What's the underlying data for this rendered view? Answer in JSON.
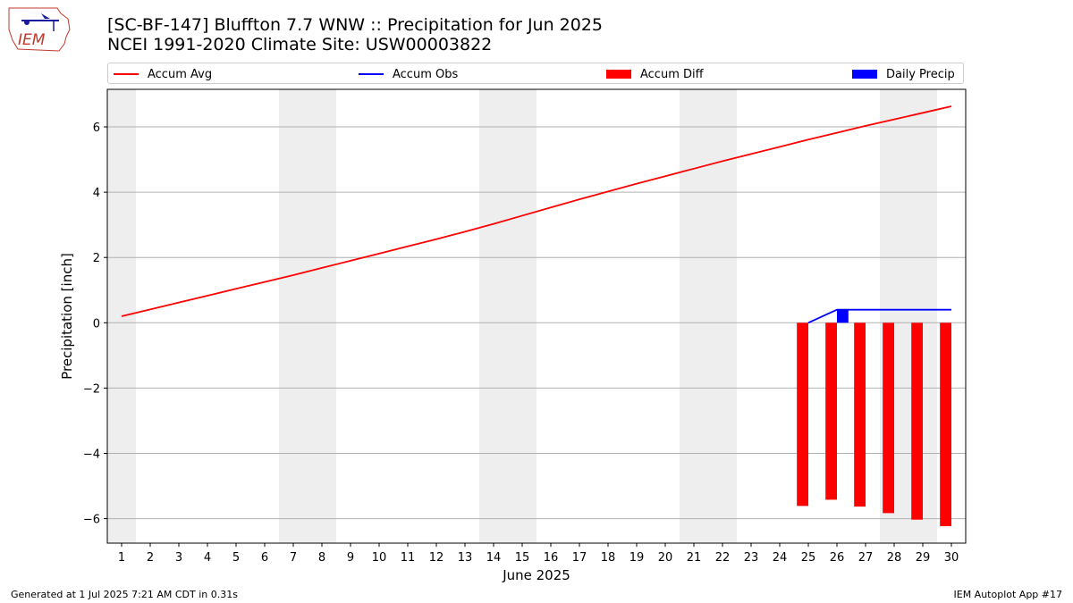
{
  "header": {
    "title_line1": "[SC-BF-147] Bluffton 7.7 WNW :: Precipitation for Jun 2025",
    "title_line2": "NCEI 1991-2020 Climate Site: USW00003822"
  },
  "logo": {
    "text": "IEM",
    "icon": "iem-logo"
  },
  "footer": {
    "left": "Generated at 1 Jul 2025 7:21 AM CDT in 0.31s",
    "right": "IEM Autoplot App #17"
  },
  "colors": {
    "avg": "#ff0000",
    "obs": "#0000ff",
    "diff": "#ff0000",
    "daily": "#0000ff",
    "weekend": "#eeeeee"
  },
  "legend": [
    {
      "label": "Accum Avg",
      "kind": "line",
      "color": "#ff0000"
    },
    {
      "label": "Accum Obs",
      "kind": "line",
      "color": "#0000ff"
    },
    {
      "label": "Accum Diff",
      "kind": "bar",
      "color": "#ff0000"
    },
    {
      "label": "Daily Precip",
      "kind": "bar",
      "color": "#0000ff"
    }
  ],
  "chart_data": {
    "type": "line",
    "title": "[SC-BF-147] Bluffton 7.7 WNW :: Precipitation for Jun 2025",
    "subtitle": "NCEI 1991-2020 Climate Site: USW00003822",
    "xlabel": "June 2025",
    "ylabel": "Precipitation [inch]",
    "x": [
      1,
      2,
      3,
      4,
      5,
      6,
      7,
      8,
      9,
      10,
      11,
      12,
      13,
      14,
      15,
      16,
      17,
      18,
      19,
      20,
      21,
      22,
      23,
      24,
      25,
      26,
      27,
      28,
      29,
      30
    ],
    "xlim": [
      0.5,
      30.5
    ],
    "ylim": [
      -6.75,
      7.15
    ],
    "yticks": [
      -6,
      -4,
      -2,
      0,
      2,
      4,
      6
    ],
    "ytick_labels": [
      "−6",
      "−4",
      "−2",
      "0",
      "2",
      "4",
      "6"
    ],
    "grid": "y",
    "legend_position": "top",
    "weekend_days": [
      1,
      7,
      8,
      14,
      15,
      21,
      22,
      28,
      29
    ],
    "series": [
      {
        "name": "Accum Avg",
        "type": "line",
        "values": [
          0.2,
          0.41,
          0.62,
          0.83,
          1.04,
          1.25,
          1.46,
          1.68,
          1.9,
          2.12,
          2.34,
          2.56,
          2.79,
          3.03,
          3.28,
          3.53,
          3.78,
          4.02,
          4.26,
          4.49,
          4.72,
          4.95,
          5.17,
          5.39,
          5.61,
          5.82,
          6.03,
          6.23,
          6.43,
          6.63
        ]
      },
      {
        "name": "Accum Obs",
        "type": "line",
        "x": [
          25,
          26,
          27,
          28,
          29,
          30
        ],
        "values": [
          0.0,
          0.4,
          0.4,
          0.4,
          0.4,
          0.4
        ]
      },
      {
        "name": "Accum Diff",
        "type": "bar",
        "x": [
          25,
          26,
          27,
          28,
          29,
          30
        ],
        "values": [
          -5.61,
          -5.42,
          -5.63,
          -5.83,
          -6.03,
          -6.23
        ]
      },
      {
        "name": "Daily Precip",
        "type": "bar",
        "x": [
          26
        ],
        "values": [
          0.4
        ]
      }
    ]
  }
}
